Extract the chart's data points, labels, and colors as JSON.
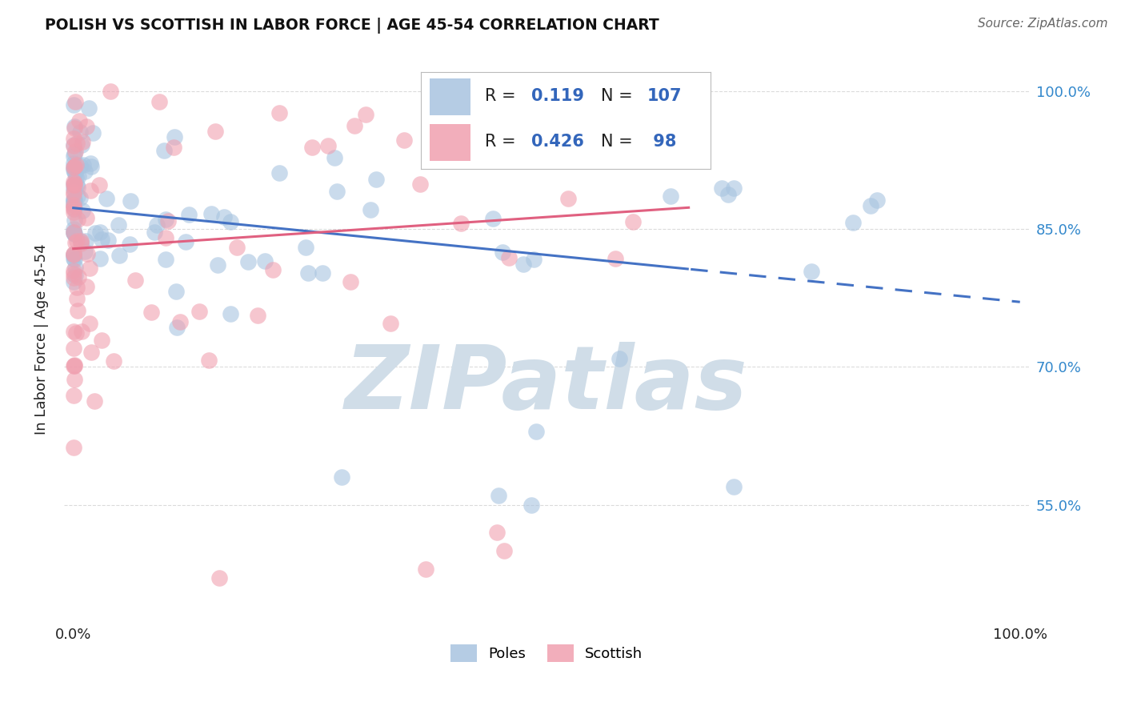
{
  "title": "POLISH VS SCOTTISH IN LABOR FORCE | AGE 45-54 CORRELATION CHART",
  "source": "Source: ZipAtlas.com",
  "ylabel": "In Labor Force | Age 45-54",
  "y_ticks": [
    0.55,
    0.7,
    0.85,
    1.0
  ],
  "y_tick_labels": [
    "55.0%",
    "70.0%",
    "85.0%",
    "100.0%"
  ],
  "poles_color": "#a8c4e0",
  "scottish_color": "#f0a0b0",
  "poles_line_color": "#4472c4",
  "scottish_line_color": "#e06080",
  "background_color": "#ffffff",
  "watermark_color": "#d0dde8",
  "grid_color": "#cccccc",
  "ylim": [
    0.42,
    1.04
  ],
  "xlim": [
    -0.01,
    1.01
  ],
  "poles_R": 0.119,
  "poles_N": 107,
  "scottish_R": 0.426,
  "scottish_N": 98,
  "legend_R_color": "#3366bb",
  "legend_label_color": "#222222"
}
